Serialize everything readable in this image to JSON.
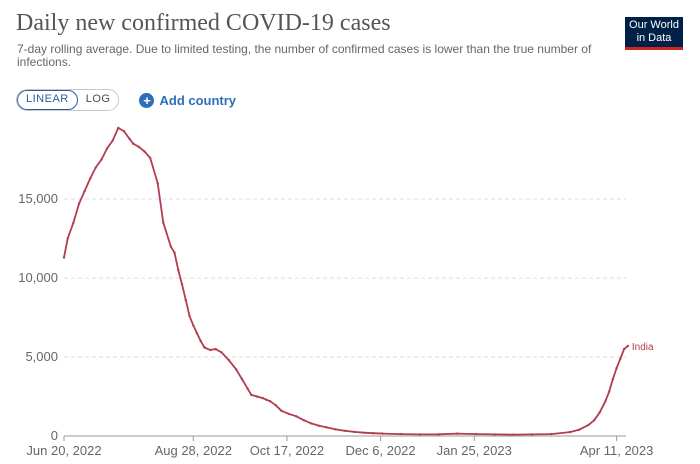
{
  "header": {
    "title": "Daily new confirmed COVID-19 cases",
    "subtitle": "7-day rolling average. Due to limited testing, the number of confirmed cases is lower than the true number of infections.",
    "logo_line1": "Our World",
    "logo_line2": "in Data"
  },
  "controls": {
    "linear_label": "LINEAR",
    "log_label": "LOG",
    "add_country_label": "Add country",
    "plus_glyph": "+"
  },
  "colors": {
    "series": "#b13d4f",
    "accent": "#2c6fb7",
    "logo_bg": "#002147"
  },
  "chart_data": {
    "type": "line",
    "title": "Daily new confirmed COVID-19 cases",
    "xlabel": "",
    "ylabel": "",
    "ylim": [
      0,
      20000
    ],
    "yticks": [
      {
        "value": 0,
        "label": "0"
      },
      {
        "value": 5000,
        "label": "5,000"
      },
      {
        "value": 10000,
        "label": "10,000"
      },
      {
        "value": 15000,
        "label": "15,000"
      }
    ],
    "xlim": [
      0,
      300
    ],
    "xticks": [
      {
        "day": 0,
        "label": "Jun 20, 2022"
      },
      {
        "day": 69,
        "label": "Aug 28, 2022"
      },
      {
        "day": 119,
        "label": "Oct 17, 2022"
      },
      {
        "day": 169,
        "label": "Dec 6, 2022"
      },
      {
        "day": 219,
        "label": "Jan 25, 2023"
      },
      {
        "day": 295,
        "label": "Apr 11, 2023"
      }
    ],
    "series": [
      {
        "name": "India",
        "x": [
          0,
          2,
          5,
          8,
          11,
          14,
          17,
          20,
          23,
          26,
          29,
          32,
          35,
          37,
          40,
          43,
          46,
          50,
          53,
          57,
          59,
          61,
          63,
          65,
          67,
          69,
          71,
          73,
          75,
          78,
          81,
          84,
          88,
          92,
          95,
          98,
          100,
          103,
          106,
          108,
          110,
          113,
          116,
          120,
          124,
          128,
          132,
          136,
          140,
          145,
          150,
          155,
          160,
          165,
          170,
          180,
          190,
          200,
          210,
          220,
          230,
          240,
          250,
          260,
          270,
          275,
          280,
          283,
          286,
          289,
          291,
          293,
          295,
          297,
          299,
          301
        ],
        "y": [
          11300,
          12500,
          13500,
          14700,
          15500,
          16300,
          17000,
          17500,
          18200,
          18700,
          19500,
          19300,
          18800,
          18500,
          18300,
          18000,
          17600,
          16000,
          13500,
          12000,
          11600,
          10500,
          9600,
          8600,
          7600,
          7000,
          6500,
          6000,
          5600,
          5450,
          5500,
          5300,
          4800,
          4200,
          3600,
          3000,
          2600,
          2500,
          2400,
          2300,
          2200,
          1950,
          1600,
          1400,
          1250,
          1000,
          800,
          650,
          550,
          420,
          330,
          260,
          210,
          180,
          150,
          120,
          100,
          110,
          150,
          120,
          100,
          90,
          100,
          120,
          250,
          400,
          700,
          1000,
          1500,
          2200,
          2800,
          3600,
          4300,
          4900,
          5500,
          5700
        ]
      }
    ]
  }
}
